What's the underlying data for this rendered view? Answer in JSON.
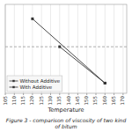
{
  "chart_data": {
    "type": "line",
    "title": "Figure 3 - comparison of viscosity of two kind of bitum",
    "x_label": "Temperature",
    "series": [
      {
        "name": "Without Additive",
        "color": "#333333",
        "marker": "square",
        "x": [
          120,
          160
        ],
        "values": [
          0.88,
          0.12
        ]
      },
      {
        "name": "With Additive",
        "color": "#333333",
        "marker": "square",
        "x": [
          135,
          160
        ],
        "values": [
          0.55,
          0.12
        ]
      }
    ],
    "reference_lines": [
      {
        "y": 0.55,
        "color": "#999999",
        "line_style": "dashed"
      }
    ],
    "xlim": [
      105,
      172
    ],
    "ylim": [
      0.0,
      1.05
    ],
    "xticks": [
      105,
      110,
      115,
      120,
      125,
      130,
      135,
      140,
      145,
      150,
      155,
      160,
      165,
      170
    ],
    "tick_labels": "x",
    "grid": true,
    "legend": "lower left"
  }
}
